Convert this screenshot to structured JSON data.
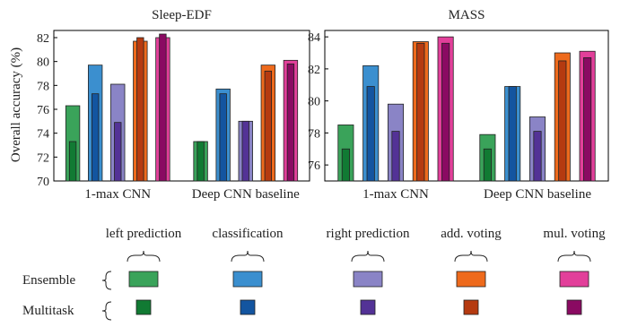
{
  "ylabel": "Overall accuracy (%)",
  "colors": {
    "ensemble": {
      "left": "#3aa35a",
      "classification": "#3b8fcf",
      "right": "#8a84c6",
      "add": "#ee6a1c",
      "mul": "#e23f9a"
    },
    "multitask": {
      "left": "#117a33",
      "classification": "#1355a0",
      "right": "#533296",
      "add": "#b53a10",
      "mul": "#8a0a62"
    }
  },
  "chart_data": [
    {
      "type": "bar",
      "title": "Sleep-EDF",
      "ylabel": "Overall accuracy (%)",
      "ylim": [
        70,
        82.6
      ],
      "yticks": [
        70,
        72,
        74,
        76,
        78,
        80,
        82
      ],
      "grid": false,
      "categories": [
        "1-max CNN",
        "Deep CNN baseline"
      ],
      "series": [
        {
          "group": "ensemble",
          "method": "left",
          "values": [
            76.3,
            73.3
          ]
        },
        {
          "group": "multitask",
          "method": "left",
          "values": [
            73.3,
            73.3
          ]
        },
        {
          "group": "ensemble",
          "method": "classification",
          "values": [
            79.7,
            77.7
          ]
        },
        {
          "group": "multitask",
          "method": "classification",
          "values": [
            77.3,
            77.3
          ]
        },
        {
          "group": "ensemble",
          "method": "right",
          "values": [
            78.1,
            75.0
          ]
        },
        {
          "group": "multitask",
          "method": "right",
          "values": [
            74.9,
            75.0
          ]
        },
        {
          "group": "ensemble",
          "method": "add",
          "values": [
            81.7,
            79.7
          ]
        },
        {
          "group": "multitask",
          "method": "add",
          "values": [
            82.0,
            79.2
          ]
        },
        {
          "group": "ensemble",
          "method": "mul",
          "values": [
            82.0,
            80.1
          ]
        },
        {
          "group": "multitask",
          "method": "mul",
          "values": [
            82.3,
            79.8
          ]
        }
      ]
    },
    {
      "type": "bar",
      "title": "MASS",
      "ylim": [
        75,
        84.4
      ],
      "yticks": [
        76,
        78,
        80,
        82,
        84
      ],
      "grid": false,
      "categories": [
        "1-max CNN",
        "Deep CNN baseline"
      ],
      "series": [
        {
          "group": "ensemble",
          "method": "left",
          "values": [
            78.5,
            77.9
          ]
        },
        {
          "group": "multitask",
          "method": "left",
          "values": [
            77.0,
            77.0
          ]
        },
        {
          "group": "ensemble",
          "method": "classification",
          "values": [
            82.2,
            80.9
          ]
        },
        {
          "group": "multitask",
          "method": "classification",
          "values": [
            80.9,
            80.9
          ]
        },
        {
          "group": "ensemble",
          "method": "right",
          "values": [
            79.8,
            79.0
          ]
        },
        {
          "group": "multitask",
          "method": "right",
          "values": [
            78.1,
            78.1
          ]
        },
        {
          "group": "ensemble",
          "method": "add",
          "values": [
            83.7,
            83.0
          ]
        },
        {
          "group": "multitask",
          "method": "add",
          "values": [
            83.6,
            82.5
          ]
        },
        {
          "group": "ensemble",
          "method": "mul",
          "values": [
            84.0,
            83.1
          ]
        },
        {
          "group": "multitask",
          "method": "mul",
          "values": [
            83.6,
            82.7
          ]
        }
      ]
    }
  ],
  "legend": {
    "methods": [
      {
        "key": "left",
        "label": "left prediction"
      },
      {
        "key": "classification",
        "label": "classification"
      },
      {
        "key": "right",
        "label": "right prediction"
      },
      {
        "key": "add",
        "label": "add. voting"
      },
      {
        "key": "mul",
        "label": "mul. voting"
      }
    ],
    "rows": [
      {
        "key": "ensemble",
        "label": "Ensemble"
      },
      {
        "key": "multitask",
        "label": "Multitask"
      }
    ]
  }
}
